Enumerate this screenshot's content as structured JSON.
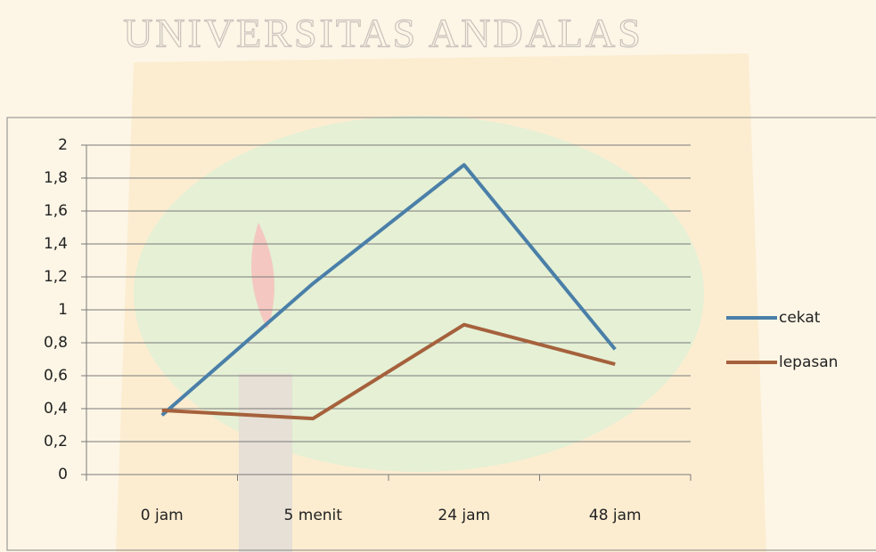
{
  "chart_data": {
    "type": "line",
    "watermark": "UNIVERSITAS ANDALAS",
    "categories": [
      "0 jam",
      "5 menit",
      "24 jam",
      "48 jam"
    ],
    "series": [
      {
        "name": "cekat",
        "color": "#4a7fa8",
        "values": [
          0.36,
          1.16,
          1.88,
          0.76
        ]
      },
      {
        "name": "lepasan",
        "color": "#a5613c",
        "values": [
          0.39,
          0.34,
          0.91,
          0.67
        ]
      }
    ],
    "ylim": [
      0,
      2
    ],
    "yticks": [
      0,
      {
        "value": 0.2,
        "label": "0,2"
      },
      {
        "value": 0.4,
        "label": "0,4"
      },
      {
        "value": 0.6,
        "label": "0,6"
      },
      {
        "value": 0.8,
        "label": "0,8"
      },
      1,
      {
        "value": 1.2,
        "label": "1,2"
      },
      {
        "value": 1.4,
        "label": "1,4"
      },
      {
        "value": 1.6,
        "label": "1,6"
      },
      {
        "value": 1.8,
        "label": "1,8"
      },
      2
    ],
    "grid": true,
    "legend": "right"
  }
}
